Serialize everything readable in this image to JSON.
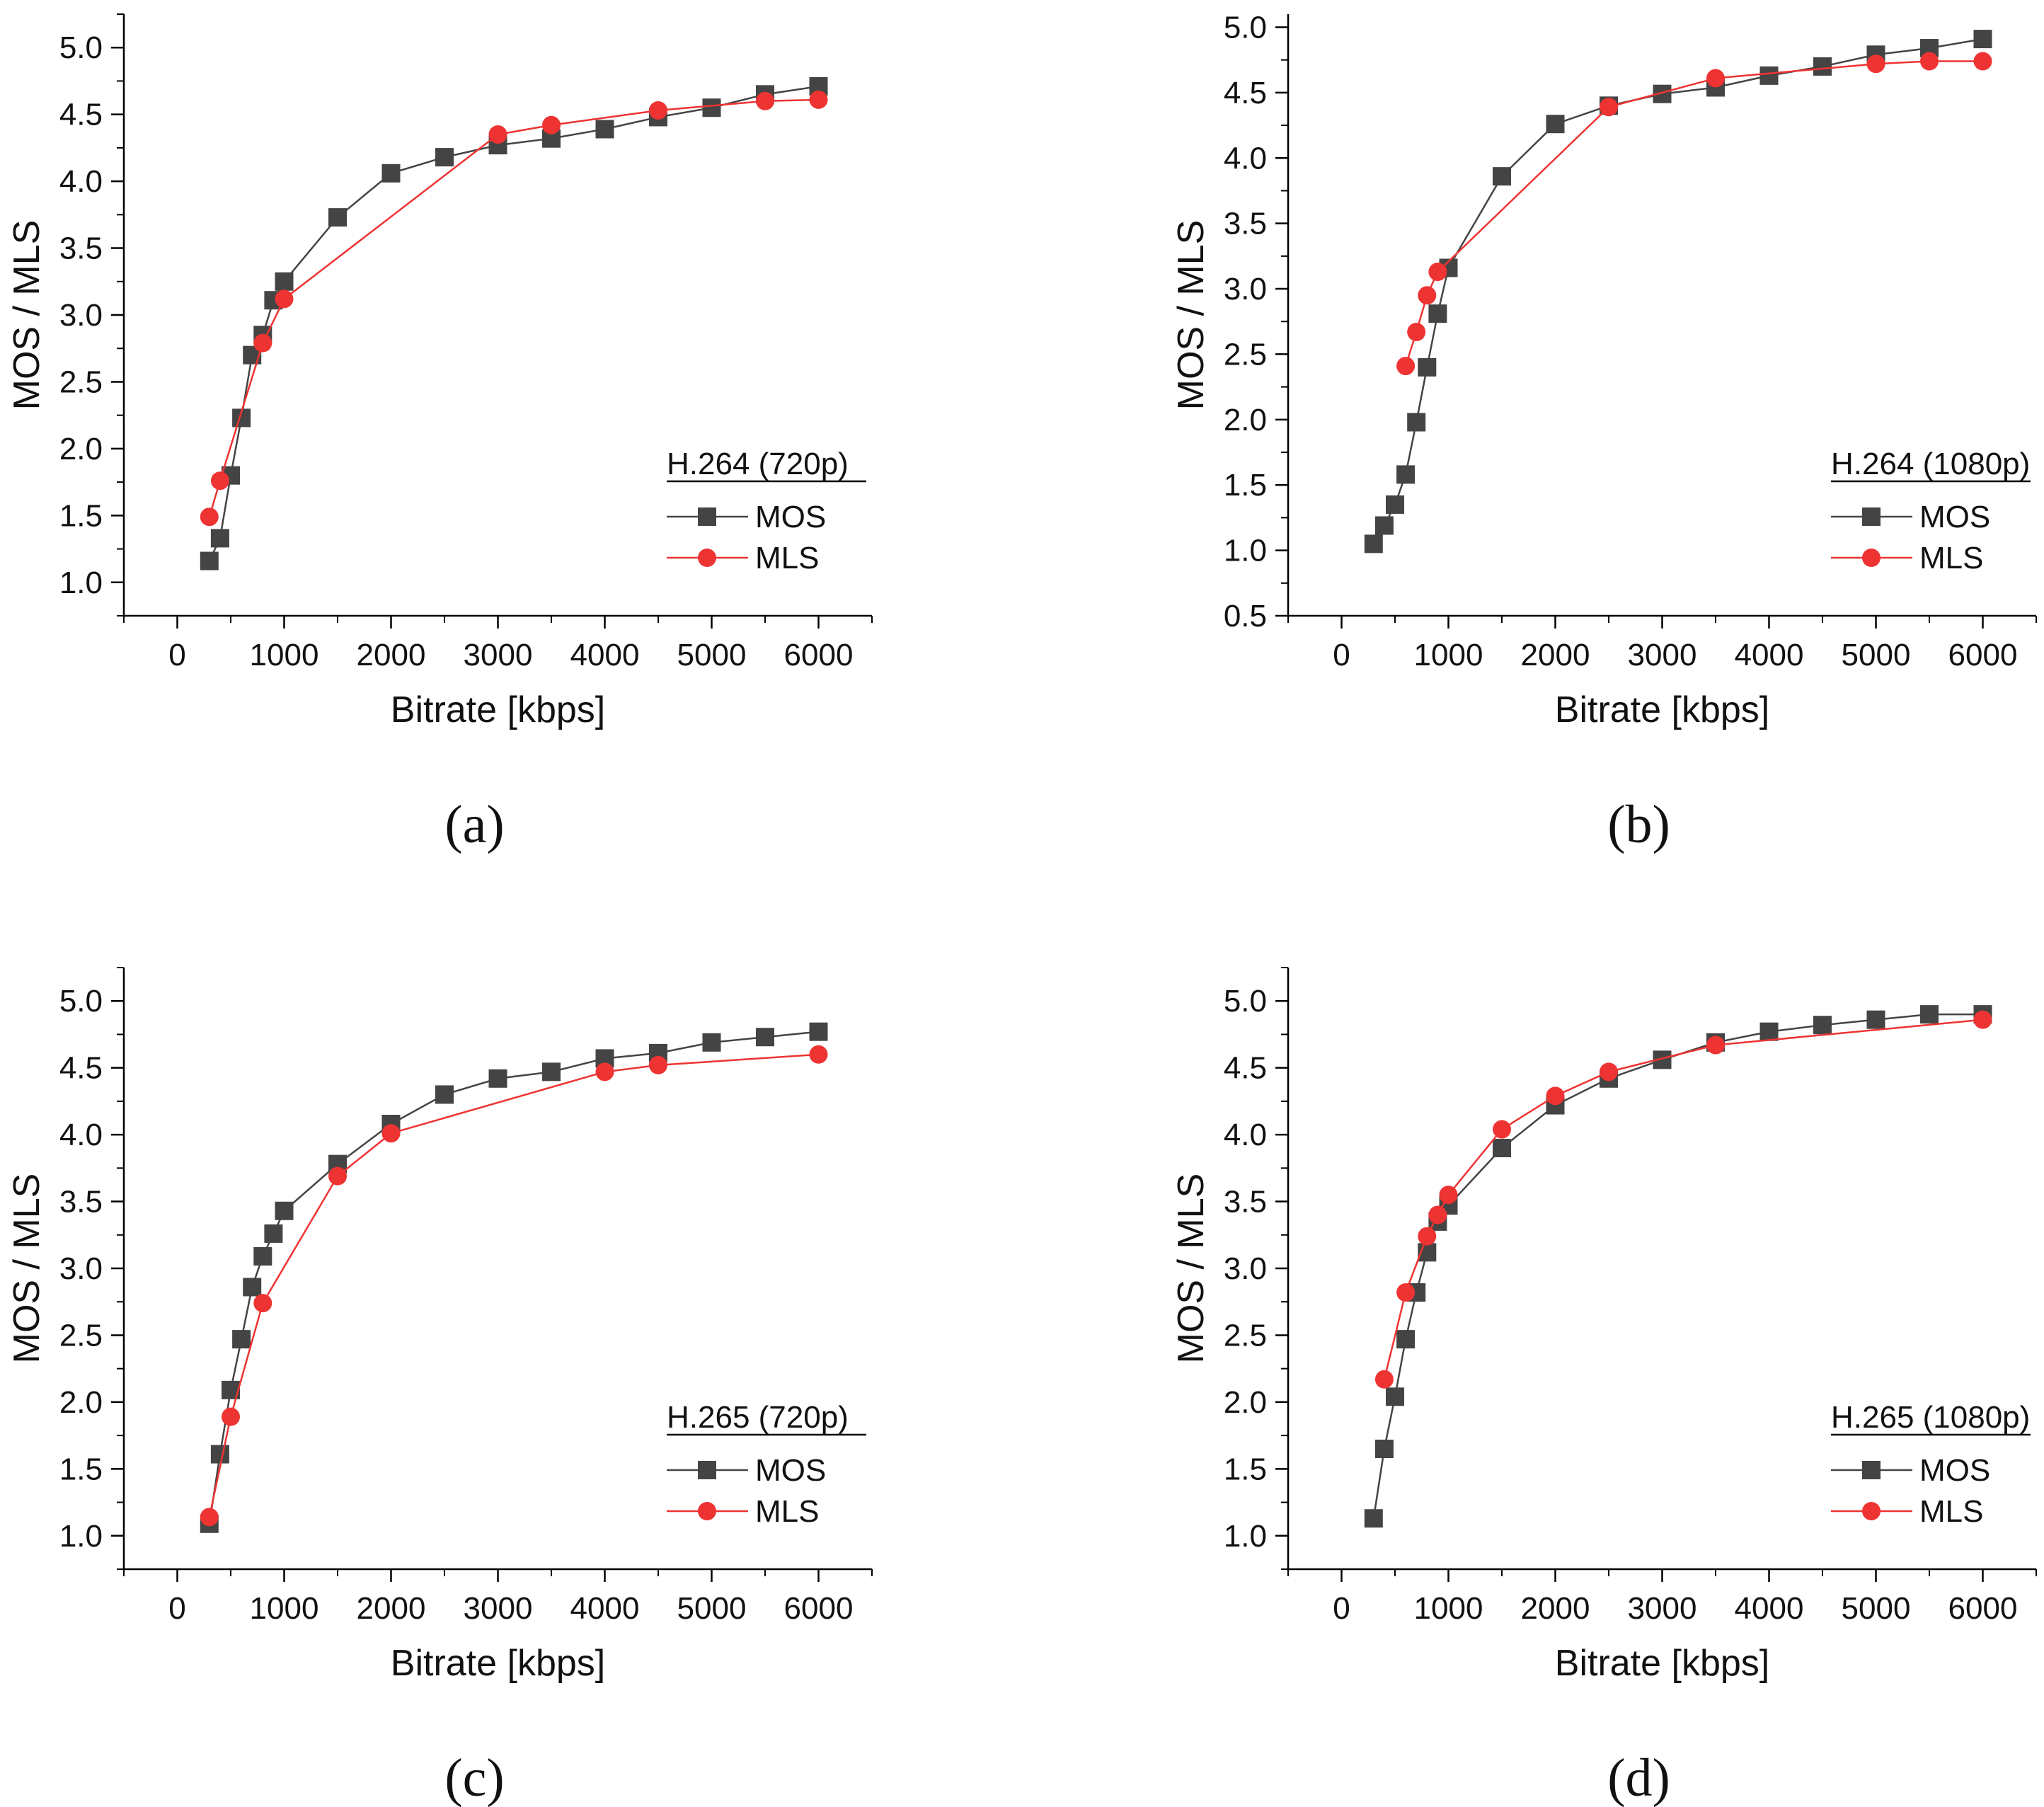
{
  "chart_data": [
    {
      "type": "line",
      "panel_label": "(a)",
      "xlabel": "Bitrate [kbps]",
      "ylabel": "MOS / MLS",
      "xlim": [
        -500,
        6500
      ],
      "ylim": [
        0.75,
        5.25
      ],
      "xticks": [
        0,
        1000,
        2000,
        3000,
        4000,
        5000,
        6000
      ],
      "yticks": [
        1.0,
        1.5,
        2.0,
        2.5,
        3.0,
        3.5,
        4.0,
        4.5,
        5.0
      ],
      "legend": {
        "title": "H.264 (720p)",
        "placement": "bottom-right"
      },
      "series": [
        {
          "name": "MOS",
          "color": "#444444",
          "marker": "square",
          "x": [
            300,
            400,
            500,
            600,
            700,
            800,
            900,
            1000,
            1500,
            2000,
            2500,
            3000,
            3500,
            4000,
            4500,
            5000,
            5500,
            6000
          ],
          "y": [
            1.16,
            1.33,
            1.8,
            2.23,
            2.7,
            2.85,
            3.11,
            3.25,
            3.73,
            4.06,
            4.18,
            4.27,
            4.32,
            4.39,
            4.48,
            4.55,
            4.65,
            4.71
          ]
        },
        {
          "name": "MLS",
          "color": "#ee3333",
          "marker": "circle",
          "x": [
            300,
            400,
            800,
            1000,
            3000,
            3500,
            4500,
            5500,
            6000
          ],
          "y": [
            1.49,
            1.76,
            2.79,
            3.12,
            4.35,
            4.42,
            4.53,
            4.6,
            4.61
          ]
        }
      ]
    },
    {
      "type": "line",
      "panel_label": "(b)",
      "xlabel": "Bitrate [kbps]",
      "ylabel": "MOS / MLS",
      "xlim": [
        -500,
        6500
      ],
      "ylim": [
        0.5,
        5.1
      ],
      "xticks": [
        0,
        1000,
        2000,
        3000,
        4000,
        5000,
        6000
      ],
      "yticks": [
        0.5,
        1.0,
        1.5,
        2.0,
        2.5,
        3.0,
        3.5,
        4.0,
        4.5,
        5.0
      ],
      "legend": {
        "title": "H.264 (1080p)",
        "placement": "bottom-right"
      },
      "series": [
        {
          "name": "MOS",
          "color": "#444444",
          "marker": "square",
          "x": [
            300,
            400,
            500,
            600,
            700,
            800,
            900,
            1000,
            1500,
            2000,
            2500,
            3000,
            3500,
            4000,
            4500,
            5000,
            5500,
            6000
          ],
          "y": [
            1.05,
            1.19,
            1.35,
            1.58,
            1.98,
            2.4,
            2.81,
            3.16,
            3.86,
            4.26,
            4.4,
            4.49,
            4.54,
            4.63,
            4.7,
            4.79,
            4.84,
            4.91
          ]
        },
        {
          "name": "MLS",
          "color": "#ee3333",
          "marker": "circle",
          "x": [
            600,
            700,
            800,
            900,
            2500,
            3500,
            5000,
            5500,
            6000
          ],
          "y": [
            2.41,
            2.67,
            2.95,
            3.13,
            4.39,
            4.61,
            4.72,
            4.74,
            4.74
          ]
        }
      ]
    },
    {
      "type": "line",
      "panel_label": "(c)",
      "xlabel": "Bitrate [kbps]",
      "ylabel": "MOS / MLS",
      "xlim": [
        -500,
        6500
      ],
      "ylim": [
        0.75,
        5.25
      ],
      "xticks": [
        0,
        1000,
        2000,
        3000,
        4000,
        5000,
        6000
      ],
      "yticks": [
        1.0,
        1.5,
        2.0,
        2.5,
        3.0,
        3.5,
        4.0,
        4.5,
        5.0
      ],
      "legend": {
        "title": "H.265 (720p)",
        "placement": "bottom-right"
      },
      "series": [
        {
          "name": "MOS",
          "color": "#444444",
          "marker": "square",
          "x": [
            300,
            400,
            500,
            600,
            700,
            800,
            900,
            1000,
            1500,
            2000,
            2500,
            3000,
            3500,
            4000,
            4500,
            5000,
            5500,
            6000
          ],
          "y": [
            1.09,
            1.61,
            2.09,
            2.47,
            2.86,
            3.09,
            3.26,
            3.43,
            3.78,
            4.08,
            4.3,
            4.42,
            4.47,
            4.57,
            4.61,
            4.69,
            4.73,
            4.77
          ]
        },
        {
          "name": "MLS",
          "color": "#ee3333",
          "marker": "circle",
          "x": [
            300,
            500,
            800,
            1500,
            2000,
            4000,
            4500,
            6000
          ],
          "y": [
            1.14,
            1.89,
            2.74,
            3.69,
            4.01,
            4.47,
            4.52,
            4.6
          ]
        }
      ]
    },
    {
      "type": "line",
      "panel_label": "(d)",
      "xlabel": "Bitrate [kbps]",
      "ylabel": "MOS / MLS",
      "xlim": [
        -500,
        6500
      ],
      "ylim": [
        0.75,
        5.25
      ],
      "xticks": [
        0,
        1000,
        2000,
        3000,
        4000,
        5000,
        6000
      ],
      "yticks": [
        1.0,
        1.5,
        2.0,
        2.5,
        3.0,
        3.5,
        4.0,
        4.5,
        5.0
      ],
      "legend": {
        "title": "H.265 (1080p)",
        "placement": "bottom-right"
      },
      "series": [
        {
          "name": "MOS",
          "color": "#444444",
          "marker": "square",
          "x": [
            300,
            400,
            500,
            600,
            700,
            800,
            900,
            1000,
            1500,
            2000,
            2500,
            3000,
            3500,
            4000,
            4500,
            5000,
            5500,
            6000
          ],
          "y": [
            1.13,
            1.65,
            2.04,
            2.47,
            2.82,
            3.12,
            3.35,
            3.47,
            3.9,
            4.22,
            4.42,
            4.56,
            4.69,
            4.77,
            4.82,
            4.86,
            4.9,
            4.9
          ]
        },
        {
          "name": "MLS",
          "color": "#ee3333",
          "marker": "circle",
          "x": [
            400,
            600,
            800,
            900,
            1000,
            1500,
            2000,
            2500,
            3500,
            6000
          ],
          "y": [
            2.17,
            2.82,
            3.24,
            3.4,
            3.55,
            4.04,
            4.29,
            4.47,
            4.67,
            4.86
          ]
        }
      ]
    }
  ]
}
